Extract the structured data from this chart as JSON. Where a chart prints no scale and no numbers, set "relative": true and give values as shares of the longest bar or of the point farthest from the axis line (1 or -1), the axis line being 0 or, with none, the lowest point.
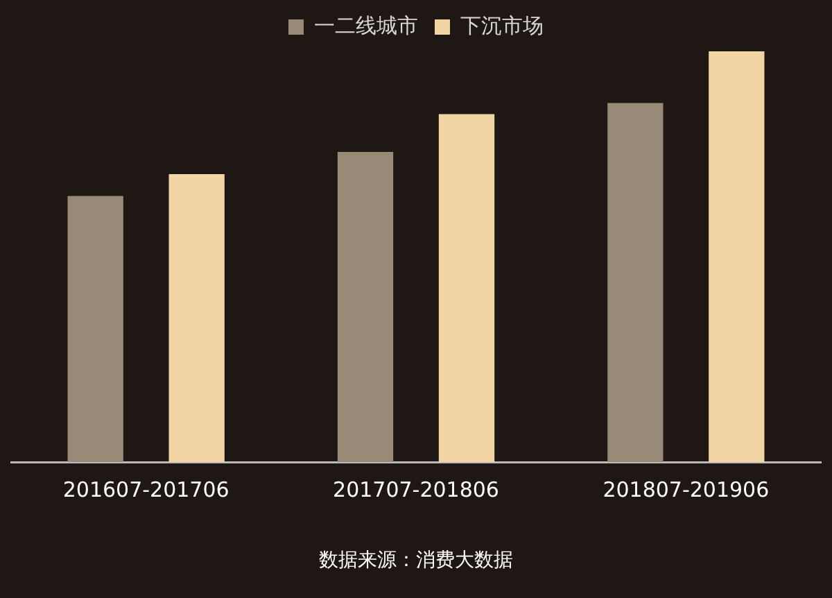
{
  "chart_data": {
    "type": "bar",
    "relative": true,
    "categories": [
      "201607-201706",
      "201707-201806",
      "201807-201906"
    ],
    "series": [
      {
        "name": "一二线城市",
        "color": "#978a76",
        "values": [
          0.648,
          0.755,
          0.874
        ]
      },
      {
        "name": "下沉市场",
        "color": "#f1d5a5",
        "values": [
          0.701,
          0.847,
          1
        ]
      }
    ],
    "legend": "top",
    "annotations": [
      "数据来源：消费大数据"
    ]
  }
}
